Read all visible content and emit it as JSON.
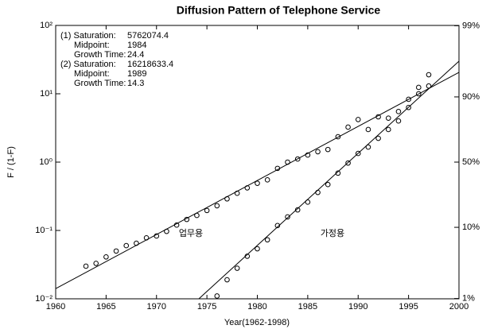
{
  "chart_data": {
    "type": "scatter",
    "title": "Diffusion Pattern of Telephone Service",
    "xlabel": "Year(1962-1998)",
    "ylabel": "F / (1-F)",
    "xlim": [
      1960,
      2000
    ],
    "xticks": [
      1960,
      1965,
      1970,
      1975,
      1980,
      1985,
      1990,
      1995,
      2000
    ],
    "yscale": "log",
    "ylim": [
      0.01,
      100
    ],
    "yticks": [
      {
        "value": 0.01,
        "label": "10⁻²"
      },
      {
        "value": 0.1,
        "label": "10⁻¹"
      },
      {
        "value": 1,
        "label": "10⁰"
      },
      {
        "value": 10,
        "label": "10¹"
      },
      {
        "value": 100,
        "label": "10²"
      }
    ],
    "y2scale": "logit",
    "y2lim": [
      0.99,
      99.01
    ],
    "y2ticks": [
      {
        "value": 1,
        "label": "1%"
      },
      {
        "value": 10,
        "label": "10%"
      },
      {
        "value": 50,
        "label": "50%"
      },
      {
        "value": 90,
        "label": "90%"
      },
      {
        "value": 99,
        "label": "99%"
      }
    ],
    "color": "#000000",
    "fit_info": [
      [
        "(1) Saturation:",
        "5762074.4"
      ],
      [
        "Midpoint:",
        "1984"
      ],
      [
        "Growth Time:",
        "24.4"
      ],
      [
        "(2) Saturation:",
        "16218633.4"
      ],
      [
        "Midpoint:",
        "1989"
      ],
      [
        "Growth Time:",
        "14.3"
      ]
    ],
    "series": [
      {
        "name": "업무용",
        "x": [
          1963,
          1964,
          1965,
          1966,
          1967,
          1968,
          1969,
          1970,
          1971,
          1972,
          1973,
          1974,
          1975,
          1976,
          1977,
          1978,
          1979,
          1980,
          1981,
          1982,
          1983,
          1984,
          1985,
          1986,
          1987,
          1988,
          1989,
          1990,
          1991,
          1992,
          1993,
          1994,
          1995,
          1996,
          1997
        ],
        "values": [
          0.03,
          0.033,
          0.041,
          0.05,
          0.06,
          0.065,
          0.078,
          0.083,
          0.097,
          0.12,
          0.145,
          0.166,
          0.196,
          0.23,
          0.29,
          0.35,
          0.42,
          0.49,
          0.55,
          0.81,
          1.0,
          1.11,
          1.27,
          1.42,
          1.53,
          2.35,
          3.25,
          4.2,
          3.0,
          4.6,
          4.4,
          5.5,
          8.3,
          12.4,
          19
        ]
      },
      {
        "name": "가정용",
        "x": [
          1976,
          1977,
          1978,
          1979,
          1980,
          1981,
          1982,
          1983,
          1984,
          1985,
          1986,
          1987,
          1988,
          1989,
          1990,
          1991,
          1992,
          1993,
          1994,
          1995,
          1996,
          1997
        ],
        "values": [
          0.011,
          0.019,
          0.028,
          0.042,
          0.054,
          0.073,
          0.118,
          0.158,
          0.2,
          0.26,
          0.36,
          0.47,
          0.69,
          0.97,
          1.34,
          1.66,
          2.23,
          3.0,
          4.0,
          6.3,
          10,
          13
        ]
      }
    ],
    "fit_lines": [
      {
        "x": [
          1960,
          2000
        ],
        "values": [
          0.0141,
          20.6
        ]
      },
      {
        "x": [
          1974.2,
          2000
        ],
        "values": [
          0.01,
          30
        ]
      }
    ]
  }
}
